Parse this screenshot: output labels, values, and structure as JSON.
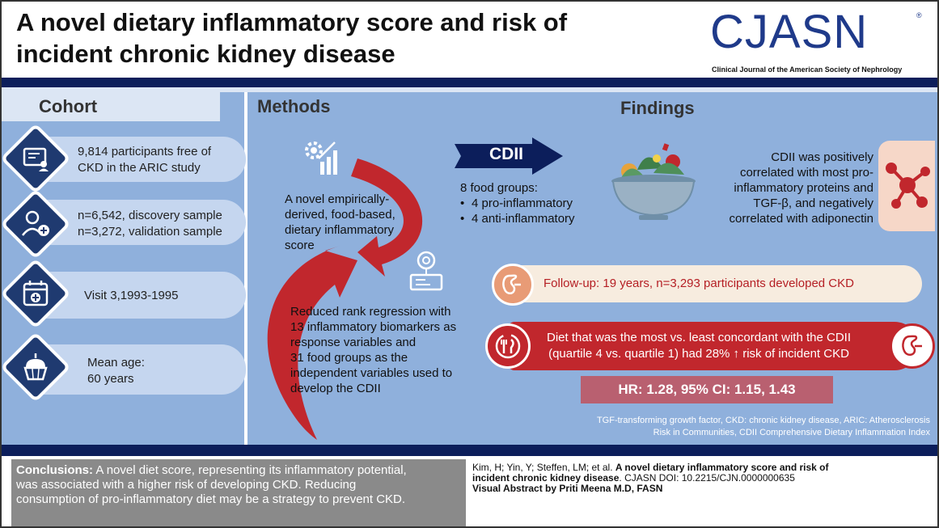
{
  "header": {
    "title_line1": "A novel dietary inflammatory score and risk of",
    "title_line2": "incident chronic kidney disease",
    "logo": "CJASN",
    "logo_mark": "®",
    "logo_subtitle": "Clinical Journal of the American Society of Nephrology"
  },
  "cohort": {
    "heading": "Cohort",
    "items": [
      {
        "line1": "9,814 participants free of",
        "line2": "CKD in the ARIC study",
        "icon": "certificate-user-icon"
      },
      {
        "line1": "n=6,542, discovery sample",
        "line2": "n=3,272, validation sample",
        "icon": "user-plus-icon"
      },
      {
        "line1": "Visit 3,1993-1995",
        "line2": "",
        "icon": "medical-calendar-icon"
      },
      {
        "line1": "Mean age:",
        "line2": "60 years",
        "icon": "cupcake-icon"
      }
    ]
  },
  "methods": {
    "heading": "Methods",
    "text1": [
      "A novel empirically-",
      "derived, food-based,",
      "dietary inflammatory",
      "score"
    ],
    "text2": [
      "Reduced rank regression with",
      "13 inflammatory biomarkers as",
      "response variables and",
      "31 food groups as the",
      "independent variables used to",
      "develop the CDII"
    ]
  },
  "findings": {
    "heading": "Findings",
    "cdii_label": "CDII",
    "food_groups_title": "8 food groups:",
    "food_groups": [
      "4 pro-inflammatory",
      "4 anti-inflammatory"
    ],
    "correlation": [
      "CDII was positively",
      "correlated with most pro-",
      "inflammatory proteins and",
      "TGF-β, and negatively",
      "correlated with adiponectin"
    ],
    "follow_up": "Follow-up: 19 years, n=3,293 participants developed CKD",
    "diet_line1": "Diet that was the most vs. least concordant with the CDII",
    "diet_line2": "(quartile 4 vs. quartile 1) had 28% ↑ risk of incident CKD",
    "hr": "HR: 1.28, 95% CI: 1.15, 1.43",
    "footnote_line1": "TGF-transforming growth factor, CKD: chronic kidney disease, ARIC: Atherosclerosis",
    "footnote_line2": "Risk in Communities, CDII Comprehensive Dietary Inflammation Index"
  },
  "conclusion": {
    "label": "Conclusions:",
    "text_line1": " A novel diet score, representing its inflammatory potential,",
    "text_line2": "was associated with a higher risk of developing CKD. Reducing",
    "text_line3": "consumption of pro-inflammatory diet may be a strategy to prevent CKD."
  },
  "citation": {
    "authors": "Kim, H; Yin, Y; Steffen, LM; et al. ",
    "title_line1": "A novel dietary inflammatory score and risk of",
    "title_line2": "incident chronic kidney disease",
    "doi": ". CJASN DOI: 10.2215/CJN.0000000635",
    "visual": "Visual Abstract by Priti Meena M.D, FASN"
  },
  "colors": {
    "navy": "#0c1e5b",
    "panel_blue": "#8fb0dc",
    "accent_red": "#c1272d",
    "logo_blue": "#1f3a8a"
  }
}
